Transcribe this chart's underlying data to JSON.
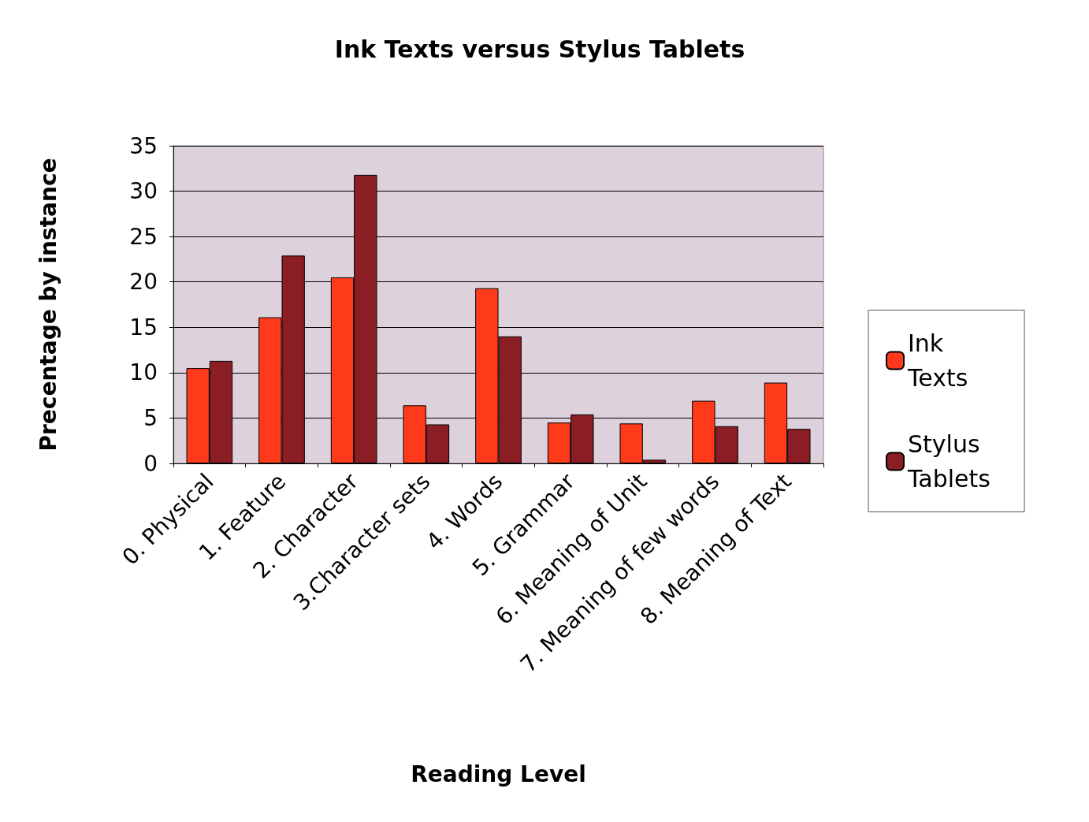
{
  "chart_data": {
    "type": "bar",
    "title": "Ink Texts versus Stylus Tablets",
    "xlabel": "Reading Level",
    "ylabel": "Precentage by instance",
    "categories": [
      "0. Physical",
      "1. Feature",
      "2. Character",
      "3.Character sets",
      "4. Words",
      "5. Grammar",
      "6. Meaning of Unit",
      "7. Meaning of few words",
      "8. Meaning of Text"
    ],
    "series": [
      {
        "name": "Ink Texts",
        "color": "#ff3a1a",
        "values": [
          10.5,
          16.1,
          20.5,
          6.4,
          19.3,
          4.5,
          4.4,
          6.9,
          8.9
        ]
      },
      {
        "name": "Stylus Tablets",
        "color": "#8b1e24",
        "values": [
          11.3,
          22.9,
          31.8,
          4.3,
          14.0,
          5.4,
          0.4,
          4.1,
          3.8
        ]
      }
    ],
    "ylim": [
      0,
      35
    ],
    "yticks": [
      0,
      5,
      10,
      15,
      20,
      25,
      30,
      35
    ],
    "grid": "y",
    "legend": "right"
  }
}
